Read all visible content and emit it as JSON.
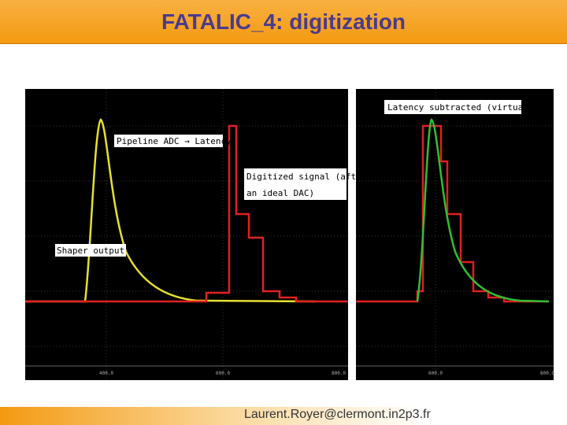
{
  "header": {
    "title": "FATALIC_4: digitization"
  },
  "labels": {
    "latency_subtracted": "Latency subtracted (virtually)",
    "pipeline": "Pipeline ADC → Latency",
    "digitized_1": "Digitized signal (after",
    "digitized_2": "an ideal DAC)",
    "shaper": "Shaper output signal"
  },
  "ticks": {
    "left": [
      "400.0",
      "600.0",
      "800.0"
    ],
    "right": [
      "600.0",
      "800.0"
    ]
  },
  "footer": {
    "email": "Laurent.Royer@clermont.in2p3.fr"
  }
}
